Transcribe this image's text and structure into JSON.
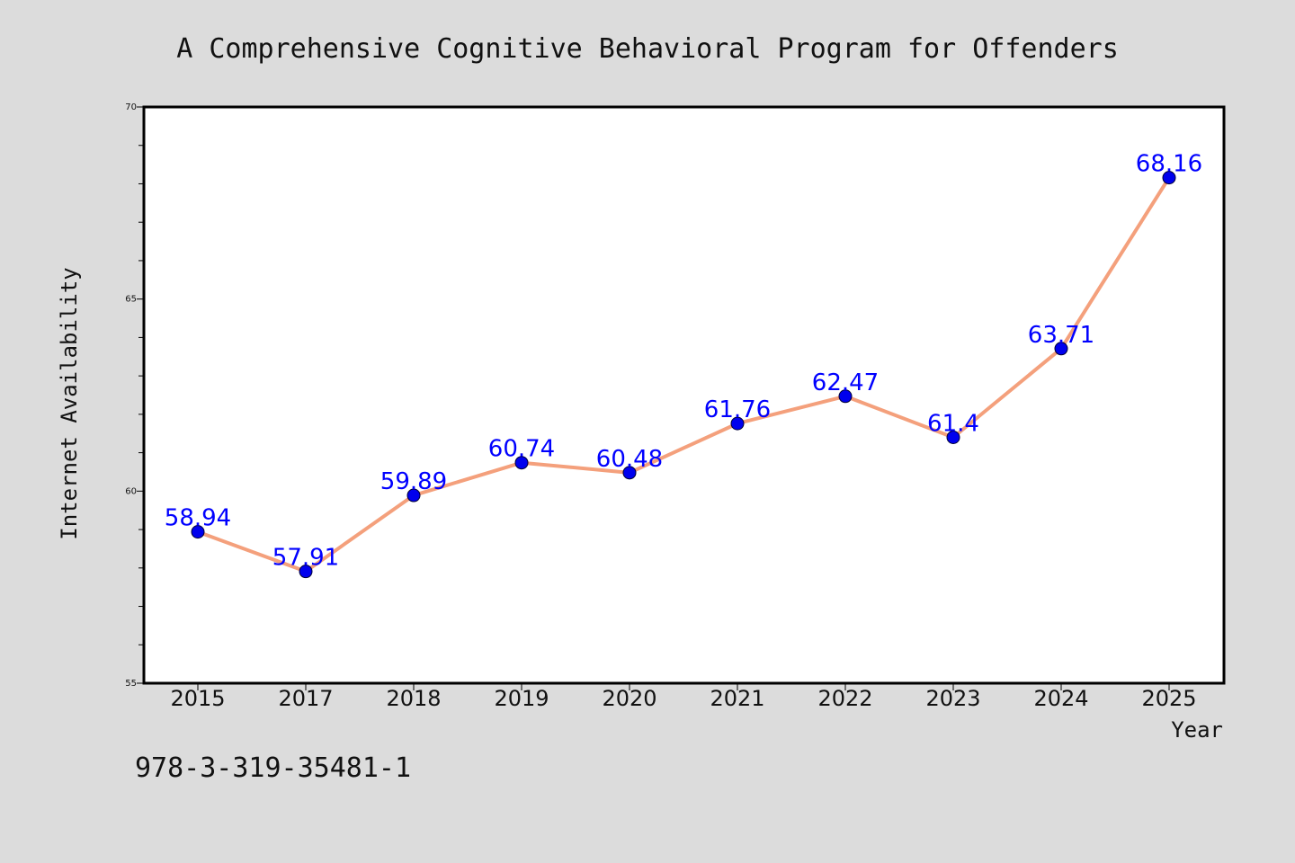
{
  "chart_data": {
    "type": "line",
    "title": "A Comprehensive Cognitive Behavioral Program for Offenders",
    "xlabel": "Year",
    "ylabel": "Internet Availability",
    "categories": [
      "2015",
      "2017",
      "2018",
      "2019",
      "2020",
      "2021",
      "2022",
      "2023",
      "2024",
      "2025"
    ],
    "series": [
      {
        "values": [
          58.94,
          57.91,
          59.89,
          60.74,
          60.48,
          61.76,
          62.47,
          61.4,
          63.71,
          68.16
        ]
      }
    ],
    "data_labels": [
      "58.94",
      "57.91",
      "59.89",
      "60.74",
      "60.48",
      "61.76",
      "62.47",
      "61.4",
      "63.71",
      "68.16"
    ],
    "ylim": [
      55,
      70
    ],
    "y_ticks": [
      "55",
      "60",
      "65",
      "70"
    ],
    "grid": false,
    "legend": "none",
    "colors": {
      "line": "#f4a07c",
      "marker": "#0000ee",
      "data_label": "#0000ff",
      "background": "#dcdcdc",
      "plot_background": "#ffffff"
    }
  },
  "footer": {
    "isbn": "978-3-319-35481-1"
  }
}
